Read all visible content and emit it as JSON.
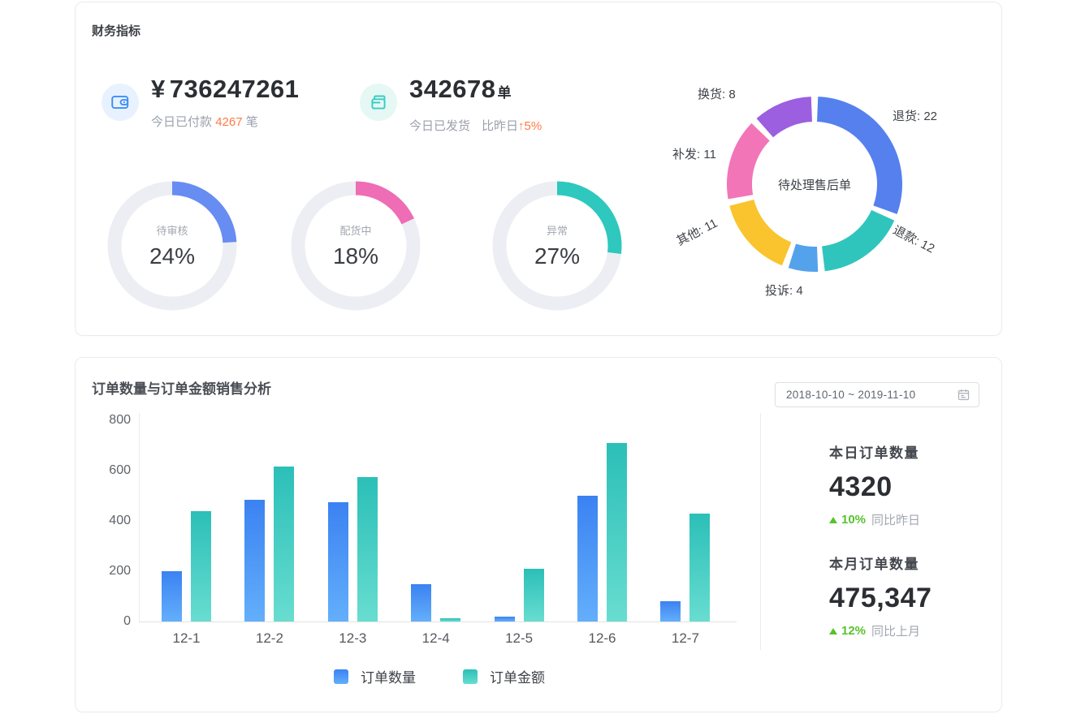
{
  "colors": {
    "highlight_orange": "#FF7A45",
    "positive_green": "#57C22D",
    "ring_track": "#ECEEF3"
  },
  "finance": {
    "title": "财务指标",
    "paid": {
      "icon": "wallet-icon",
      "currency_symbol": "¥",
      "value": "736247261",
      "sub_prefix": "今日已付款",
      "sub_count": "4267",
      "sub_suffix": "笔"
    },
    "shipped": {
      "icon": "box-icon",
      "value": "342678",
      "unit": "单",
      "sub_prefix": "今日已发货",
      "compare_label": "比昨日",
      "arrow": "↑",
      "delta": "5%"
    },
    "rings": [
      {
        "label": "待审核",
        "percent": 24,
        "display": "24%",
        "color": "#678DF2"
      },
      {
        "label": "配货中",
        "percent": 18,
        "display": "18%",
        "color": "#EE6DB4"
      },
      {
        "label": "异常",
        "percent": 27,
        "display": "27%",
        "color": "#2EC8BE"
      }
    ],
    "aftersales_center_label": "待处理售后单"
  },
  "orders": {
    "title": "订单数量与订单金额销售分析",
    "date_range": "2018-10-10 ~ 2019-11-10",
    "summary": [
      {
        "label": "本日订单数量",
        "value": "4320",
        "delta": "10%",
        "note": "同比昨日"
      },
      {
        "label": "本月订单数量",
        "value": "475,347",
        "delta": "12%",
        "note": "同比上月"
      }
    ]
  },
  "chart_data": [
    {
      "id": "aftersales-donut",
      "type": "pie",
      "title": "待处理售后单",
      "segments": [
        {
          "label": "退货",
          "value": 22,
          "color": "#5580EE"
        },
        {
          "label": "退款",
          "value": 12,
          "color": "#30C5BC"
        },
        {
          "label": "投诉",
          "value": 4,
          "color": "#55A2EC"
        },
        {
          "label": "其他",
          "value": 11,
          "color": "#FAC42E"
        },
        {
          "label": "补发",
          "value": 11,
          "color": "#F275B8"
        },
        {
          "label": "换货",
          "value": 8,
          "color": "#9B5FE0"
        }
      ]
    },
    {
      "id": "orders-bar",
      "type": "bar",
      "categories": [
        "12-1",
        "12-2",
        "12-3",
        "12-4",
        "12-5",
        "12-6",
        "12-7"
      ],
      "series": [
        {
          "name": "订单数量",
          "values": [
            200,
            485,
            475,
            150,
            20,
            500,
            80
          ],
          "color_top": "#3B82F2",
          "color_bottom": "#63AFFB"
        },
        {
          "name": "订单金额",
          "values": [
            440,
            615,
            575,
            12,
            210,
            710,
            430
          ],
          "color_top": "#2BBFB8",
          "color_bottom": "#68DDD0"
        }
      ],
      "ylim": [
        0,
        800
      ],
      "yticks": [
        0,
        200,
        400,
        600,
        800
      ],
      "grid": false,
      "legend_position": "bottom"
    }
  ]
}
